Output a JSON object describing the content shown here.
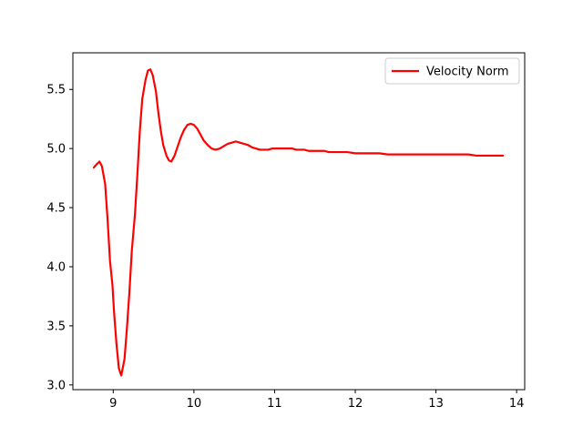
{
  "chart_data": {
    "type": "line",
    "title": "",
    "xlabel": "",
    "ylabel": "",
    "xlim": [
      8.5,
      14.1
    ],
    "ylim": [
      2.96,
      5.81
    ],
    "xticks": [
      9,
      10,
      11,
      12,
      13,
      14
    ],
    "yticks": [
      3.0,
      3.5,
      4.0,
      4.5,
      5.0,
      5.5
    ],
    "grid": false,
    "legend": {
      "position": "top-right"
    },
    "series": [
      {
        "name": "Velocity Norm",
        "color": "#ff0000",
        "x": [
          8.76,
          8.8,
          8.83,
          8.86,
          8.9,
          8.93,
          8.96,
          8.99,
          9.01,
          9.04,
          9.07,
          9.1,
          9.14,
          9.17,
          9.2,
          9.23,
          9.27,
          9.3,
          9.33,
          9.36,
          9.4,
          9.43,
          9.46,
          9.49,
          9.53,
          9.56,
          9.59,
          9.62,
          9.66,
          9.69,
          9.72,
          9.76,
          9.8,
          9.84,
          9.88,
          9.92,
          9.96,
          10.0,
          10.04,
          10.08,
          10.12,
          10.17,
          10.22,
          10.27,
          10.32,
          10.37,
          10.42,
          10.47,
          10.52,
          10.57,
          10.62,
          10.67,
          10.72,
          10.77,
          10.82,
          10.87,
          10.92,
          10.97,
          11.02,
          11.07,
          11.12,
          11.17,
          11.22,
          11.27,
          11.32,
          11.37,
          11.42,
          11.47,
          11.52,
          11.57,
          11.62,
          11.67,
          11.72,
          11.8,
          11.9,
          12.0,
          12.1,
          12.2,
          12.3,
          12.4,
          12.5,
          12.6,
          12.7,
          12.8,
          12.9,
          13.0,
          13.1,
          13.2,
          13.3,
          13.4,
          13.5,
          13.6,
          13.7,
          13.83
        ],
        "y": [
          4.84,
          4.87,
          4.89,
          4.85,
          4.7,
          4.4,
          4.05,
          3.85,
          3.62,
          3.35,
          3.14,
          3.08,
          3.22,
          3.48,
          3.78,
          4.13,
          4.45,
          4.79,
          5.15,
          5.42,
          5.58,
          5.66,
          5.67,
          5.62,
          5.48,
          5.3,
          5.15,
          5.03,
          4.94,
          4.9,
          4.89,
          4.94,
          5.02,
          5.1,
          5.16,
          5.2,
          5.21,
          5.2,
          5.17,
          5.12,
          5.07,
          5.03,
          5.0,
          4.99,
          5.0,
          5.02,
          5.04,
          5.05,
          5.06,
          5.05,
          5.04,
          5.03,
          5.01,
          5.0,
          4.99,
          4.99,
          4.99,
          5.0,
          5.0,
          5.0,
          5.0,
          5.0,
          5.0,
          4.99,
          4.99,
          4.99,
          4.98,
          4.98,
          4.98,
          4.98,
          4.98,
          4.97,
          4.97,
          4.97,
          4.97,
          4.96,
          4.96,
          4.96,
          4.96,
          4.95,
          4.95,
          4.95,
          4.95,
          4.95,
          4.95,
          4.95,
          4.95,
          4.95,
          4.95,
          4.95,
          4.94,
          4.94,
          4.94,
          4.94
        ]
      }
    ]
  }
}
